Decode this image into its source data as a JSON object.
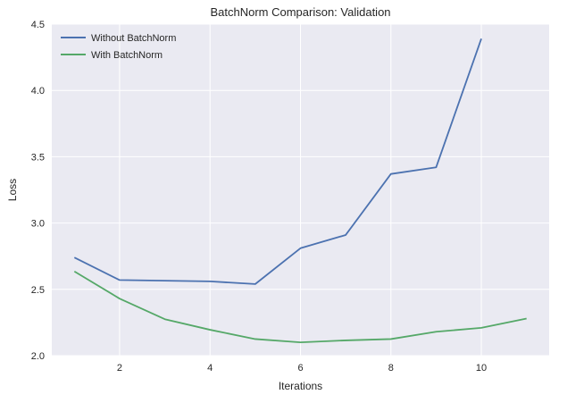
{
  "chart_data": {
    "type": "line",
    "title": "BatchNorm Comparison: Validation",
    "xlabel": "Iterations",
    "ylabel": "Loss",
    "xlim": [
      0.5,
      11.5
    ],
    "ylim": [
      2.0,
      4.5
    ],
    "xticks": [
      2,
      4,
      6,
      8,
      10
    ],
    "yticks": [
      2.0,
      2.5,
      3.0,
      3.5,
      4.0,
      4.5
    ],
    "xtick_labels": [
      "2",
      "4",
      "6",
      "8",
      "10"
    ],
    "ytick_labels": [
      "2.0",
      "2.5",
      "3.0",
      "3.5",
      "4.0",
      "4.5"
    ],
    "grid": true,
    "legend_position": "upper left",
    "series": [
      {
        "name": "Without BatchNorm",
        "color": "#4c72b0",
        "x": [
          1,
          2,
          3,
          4,
          5,
          6,
          7,
          8,
          9,
          10
        ],
        "y": [
          2.74,
          2.57,
          2.565,
          2.56,
          2.54,
          2.81,
          2.91,
          3.37,
          3.42,
          4.39
        ]
      },
      {
        "name": "With BatchNorm",
        "color": "#55a868",
        "x": [
          1,
          2,
          3,
          4,
          5,
          6,
          7,
          8,
          9,
          10,
          11
        ],
        "y": [
          2.635,
          2.43,
          2.275,
          2.195,
          2.125,
          2.1,
          2.115,
          2.125,
          2.18,
          2.21,
          2.28
        ]
      }
    ]
  }
}
